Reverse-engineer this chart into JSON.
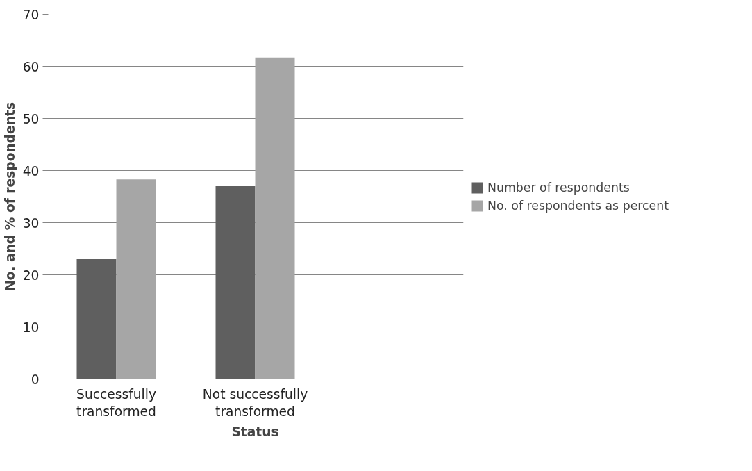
{
  "chart_data": {
    "type": "bar",
    "xlabel": "Status",
    "ylabel": "No. and % of respondents",
    "categories": [
      "Successfully transformed",
      "Not successfully transformed",
      null
    ],
    "series": [
      {
        "name": "Number of respondents",
        "color": "#5f5f5f",
        "values": [
          23,
          37,
          null
        ]
      },
      {
        "name": "No. of respondents as percent",
        "color": "#a6a6a6",
        "values": [
          38.3,
          61.7,
          null
        ]
      }
    ],
    "ylim": [
      0,
      70
    ],
    "yticks": [
      0,
      10,
      20,
      30,
      40,
      50,
      60,
      70
    ],
    "grid": "y",
    "legend": "right"
  }
}
